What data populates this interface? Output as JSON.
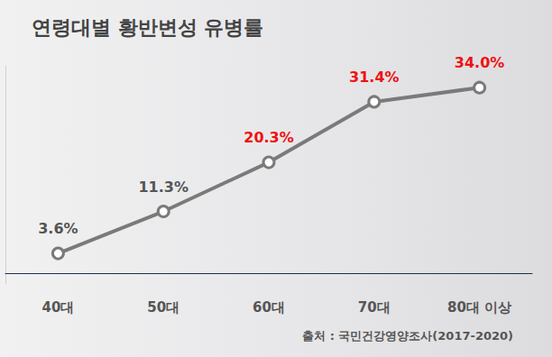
{
  "chart_data": {
    "type": "line",
    "title": "연령대별 황반변성 유병률",
    "source": "출처 : 국민건강영양조사(2017-2020)",
    "categories": [
      "40대",
      "50대",
      "60대",
      "70대",
      "80대 이상"
    ],
    "values": [
      3.6,
      11.3,
      20.3,
      31.4,
      34.0
    ],
    "value_labels": [
      "3.6%",
      "11.3%",
      "20.3%",
      "31.4%",
      "34.0%"
    ],
    "color": "#7a7a7a",
    "colors": [
      "#555555",
      "#555555",
      "#ee1111",
      "#ee1111",
      "#ee1111"
    ],
    "ylim": [
      -2,
      38
    ],
    "grid": false,
    "data_labels": true,
    "tick_labels": "x",
    "marker": "circle"
  }
}
